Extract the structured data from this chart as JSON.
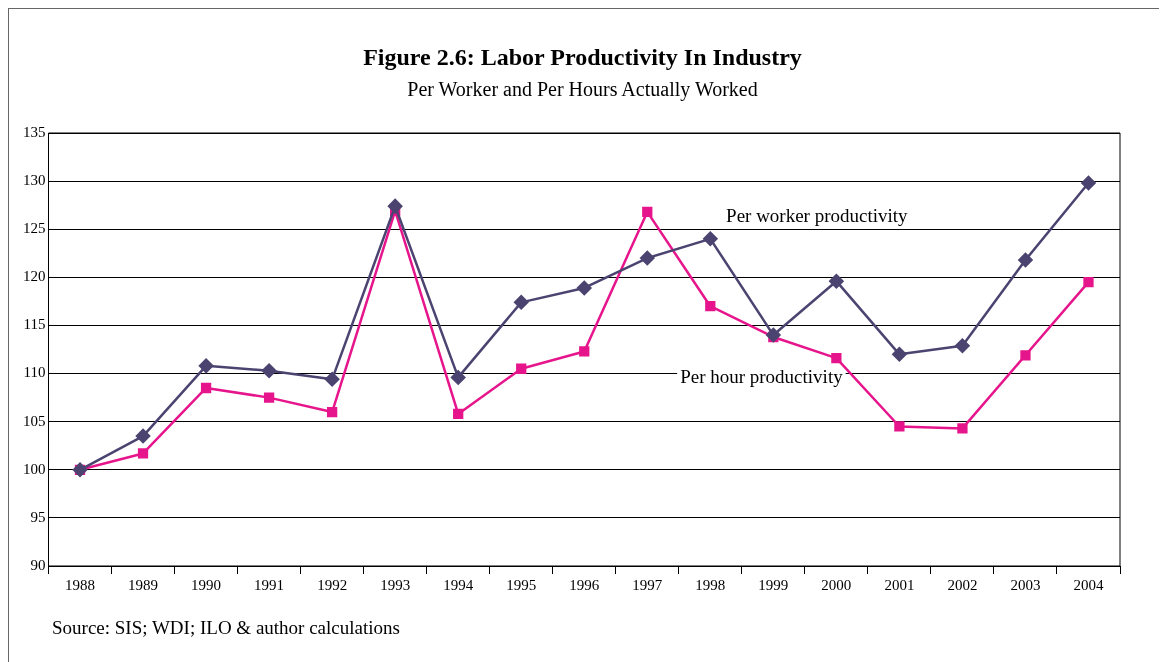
{
  "chart_data": {
    "type": "line",
    "title": "Figure 2.6: Labor Productivity In Industry",
    "subtitle": "Per Worker and Per Hours Actually Worked",
    "categories": [
      "1988",
      "1989",
      "1990",
      "1991",
      "1992",
      "1993",
      "1994",
      "1995",
      "1996",
      "1997",
      "1998",
      "1999",
      "2000",
      "2001",
      "2002",
      "2003",
      "2004"
    ],
    "series": [
      {
        "name": "Per worker productivity",
        "color": "#4b4470",
        "marker": "diamond",
        "values": [
          100,
          103.5,
          110.8,
          110.3,
          109.4,
          127.4,
          109.6,
          117.4,
          118.9,
          122.0,
          124.0,
          114.0,
          119.6,
          112.0,
          112.9,
          121.8,
          129.8
        ]
      },
      {
        "name": "Per hour productivity",
        "color": "#e6158c",
        "marker": "square",
        "values": [
          100,
          101.7,
          108.5,
          107.5,
          106.0,
          126.9,
          105.8,
          110.5,
          112.3,
          126.8,
          117.0,
          113.8,
          111.6,
          104.5,
          104.3,
          111.9,
          119.5
        ]
      }
    ],
    "ylim": [
      90,
      135
    ],
    "yticks": [
      90,
      95,
      100,
      105,
      110,
      115,
      120,
      125,
      130,
      135
    ],
    "grid": "y",
    "legend": false,
    "line_style": "solid",
    "annotations": [
      "Source: SIS; WDI; ILO & author calculations"
    ]
  }
}
